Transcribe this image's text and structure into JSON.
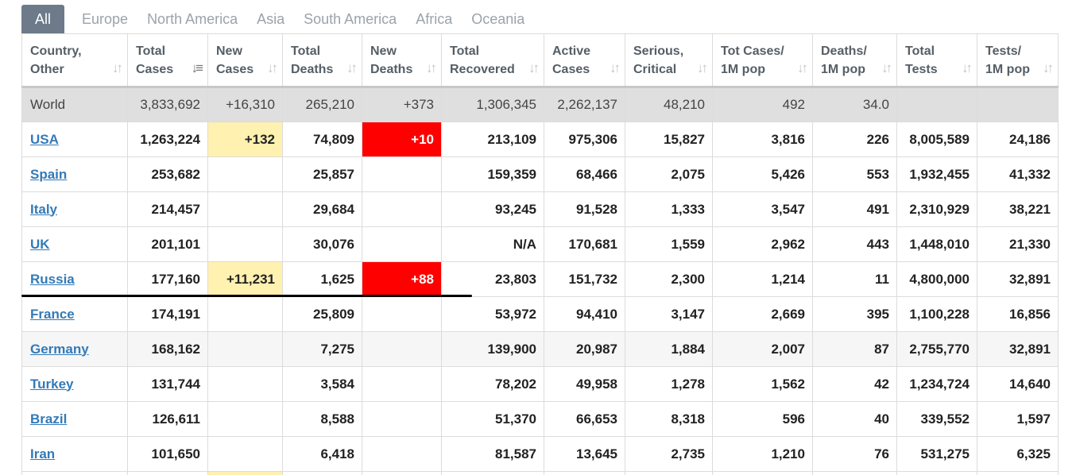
{
  "tabs": [
    "All",
    "Europe",
    "North America",
    "Asia",
    "South America",
    "Africa",
    "Oceania"
  ],
  "columns": [
    {
      "line1": "Country,",
      "line2": "Other"
    },
    {
      "line1": "Total",
      "line2": "Cases"
    },
    {
      "line1": "New",
      "line2": "Cases"
    },
    {
      "line1": "Total",
      "line2": "Deaths"
    },
    {
      "line1": "New",
      "line2": "Deaths"
    },
    {
      "line1": "Total",
      "line2": "Recovered"
    },
    {
      "line1": "Active",
      "line2": "Cases"
    },
    {
      "line1": "Serious,",
      "line2": "Critical"
    },
    {
      "line1": "Tot Cases/",
      "line2": "1M pop"
    },
    {
      "line1": "Deaths/",
      "line2": "1M pop"
    },
    {
      "line1": "Total",
      "line2": "Tests"
    },
    {
      "line1": "Tests/",
      "line2": "1M pop"
    }
  ],
  "world": {
    "country": "World",
    "total_cases": "3,833,692",
    "new_cases": "+16,310",
    "total_deaths": "265,210",
    "new_deaths": "+373",
    "total_recovered": "1,306,345",
    "active_cases": "2,262,137",
    "serious_critical": "48,210",
    "cases_per_1m": "492",
    "deaths_per_1m": "34.0",
    "total_tests": "",
    "tests_per_1m": ""
  },
  "rows": [
    {
      "country": "USA",
      "total_cases": "1,263,224",
      "new_cases": "+132",
      "total_deaths": "74,809",
      "new_deaths": "+10",
      "total_recovered": "213,109",
      "active_cases": "975,306",
      "serious_critical": "15,827",
      "cases_per_1m": "3,816",
      "deaths_per_1m": "226",
      "total_tests": "8,005,589",
      "tests_per_1m": "24,186"
    },
    {
      "country": "Spain",
      "total_cases": "253,682",
      "new_cases": "",
      "total_deaths": "25,857",
      "new_deaths": "",
      "total_recovered": "159,359",
      "active_cases": "68,466",
      "serious_critical": "2,075",
      "cases_per_1m": "5,426",
      "deaths_per_1m": "553",
      "total_tests": "1,932,455",
      "tests_per_1m": "41,332"
    },
    {
      "country": "Italy",
      "total_cases": "214,457",
      "new_cases": "",
      "total_deaths": "29,684",
      "new_deaths": "",
      "total_recovered": "93,245",
      "active_cases": "91,528",
      "serious_critical": "1,333",
      "cases_per_1m": "3,547",
      "deaths_per_1m": "491",
      "total_tests": "2,310,929",
      "tests_per_1m": "38,221"
    },
    {
      "country": "UK",
      "total_cases": "201,101",
      "new_cases": "",
      "total_deaths": "30,076",
      "new_deaths": "",
      "total_recovered": "N/A",
      "active_cases": "170,681",
      "serious_critical": "1,559",
      "cases_per_1m": "2,962",
      "deaths_per_1m": "443",
      "total_tests": "1,448,010",
      "tests_per_1m": "21,330"
    },
    {
      "country": "Russia",
      "total_cases": "177,160",
      "new_cases": "+11,231",
      "total_deaths": "1,625",
      "new_deaths": "+88",
      "total_recovered": "23,803",
      "active_cases": "151,732",
      "serious_critical": "2,300",
      "cases_per_1m": "1,214",
      "deaths_per_1m": "11",
      "total_tests": "4,800,000",
      "tests_per_1m": "32,891"
    },
    {
      "country": "France",
      "total_cases": "174,191",
      "new_cases": "",
      "total_deaths": "25,809",
      "new_deaths": "",
      "total_recovered": "53,972",
      "active_cases": "94,410",
      "serious_critical": "3,147",
      "cases_per_1m": "2,669",
      "deaths_per_1m": "395",
      "total_tests": "1,100,228",
      "tests_per_1m": "16,856"
    },
    {
      "country": "Germany",
      "total_cases": "168,162",
      "new_cases": "",
      "total_deaths": "7,275",
      "new_deaths": "",
      "total_recovered": "139,900",
      "active_cases": "20,987",
      "serious_critical": "1,884",
      "cases_per_1m": "2,007",
      "deaths_per_1m": "87",
      "total_tests": "2,755,770",
      "tests_per_1m": "32,891"
    },
    {
      "country": "Turkey",
      "total_cases": "131,744",
      "new_cases": "",
      "total_deaths": "3,584",
      "new_deaths": "",
      "total_recovered": "78,202",
      "active_cases": "49,958",
      "serious_critical": "1,278",
      "cases_per_1m": "1,562",
      "deaths_per_1m": "42",
      "total_tests": "1,234,724",
      "tests_per_1m": "14,640"
    },
    {
      "country": "Brazil",
      "total_cases": "126,611",
      "new_cases": "",
      "total_deaths": "8,588",
      "new_deaths": "",
      "total_recovered": "51,370",
      "active_cases": "66,653",
      "serious_critical": "8,318",
      "cases_per_1m": "596",
      "deaths_per_1m": "40",
      "total_tests": "339,552",
      "tests_per_1m": "1,597"
    },
    {
      "country": "Iran",
      "total_cases": "101,650",
      "new_cases": "",
      "total_deaths": "6,418",
      "new_deaths": "",
      "total_recovered": "81,587",
      "active_cases": "13,645",
      "serious_critical": "2,735",
      "cases_per_1m": "1,210",
      "deaths_per_1m": "76",
      "total_tests": "531,275",
      "tests_per_1m": "6,325"
    }
  ],
  "colors": {
    "tab_active_bg": "#6c7a89",
    "link": "#337ab7",
    "new_cases_highlight": "#fff1b0",
    "new_deaths_highlight": "#ff0000",
    "world_row_bg": "#dfdfdf"
  },
  "icons": {
    "sort": "sort-arrows-icon",
    "sort_active": "sort-descending-icon"
  }
}
